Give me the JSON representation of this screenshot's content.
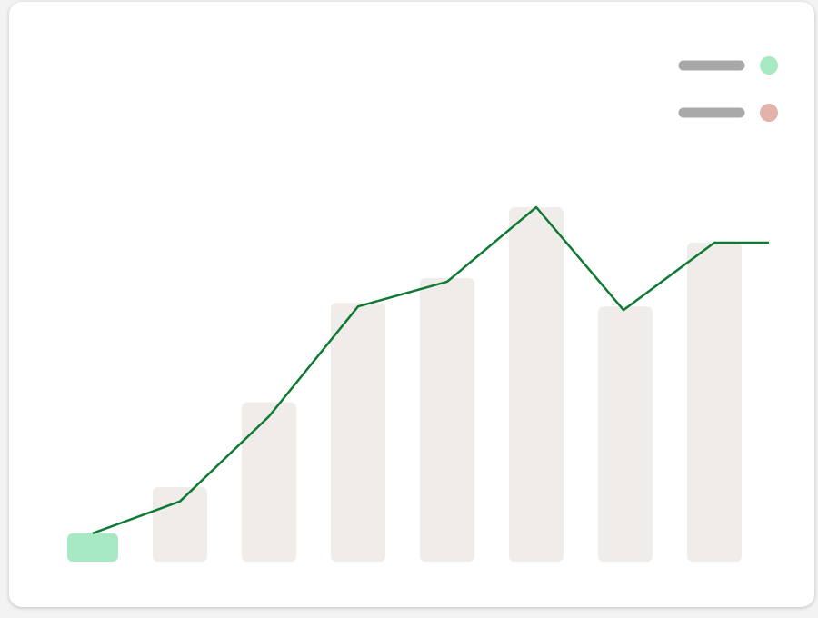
{
  "colors": {
    "bar_default": "#efecea",
    "bar_highlight": "#a6e9c3",
    "line": "#0e7a34",
    "legend_placeholder": "#a8a8a8",
    "legend_dot_1": "#a6e9c3",
    "legend_dot_2": "#e2b3ab"
  },
  "legend": {
    "placement": "top-right",
    "items": [
      {
        "icon": "green-dot",
        "color": "#a6e9c3"
      },
      {
        "icon": "red-dot",
        "color": "#e2b3ab"
      }
    ]
  },
  "chart_data": {
    "type": "bar",
    "grid": false,
    "ylim": [
      0,
      100
    ],
    "categories_count": 8,
    "bar_values": [
      8,
      21,
      45,
      73,
      80,
      100,
      72,
      90
    ],
    "highlighted_bar_index": 0,
    "line_values": [
      8,
      17,
      41,
      72,
      79,
      100,
      71,
      90,
      90
    ]
  }
}
